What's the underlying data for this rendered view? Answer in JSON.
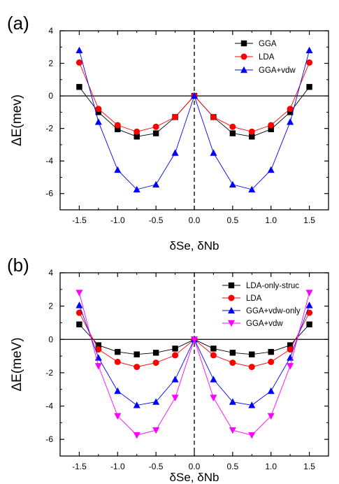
{
  "panels": [
    {
      "label": "(a)"
    },
    {
      "label": "(b)"
    }
  ],
  "chart_data": [
    {
      "type": "line",
      "panel": "(a)",
      "xlabel": "δSe,  δNb",
      "ylabel": "ΔE(mev)",
      "xlim": [
        -1.75,
        1.75
      ],
      "ylim": [
        -7,
        4
      ],
      "xticks": [
        -1.5,
        -1.0,
        -0.5,
        0.0,
        0.5,
        1.0,
        1.5
      ],
      "xtick_labels": [
        "-1.5",
        "-1.0",
        "-0.5",
        "0.0",
        "0.5",
        "1.0",
        "1.5"
      ],
      "yticks": [
        -6,
        -4,
        -2,
        0,
        2,
        4
      ],
      "ytick_labels": [
        "-6",
        "-4",
        "-2",
        "0",
        "2",
        "4"
      ],
      "hline_y": 0,
      "vline_x": 0,
      "legend_position": "top-right",
      "x": [
        -1.5,
        -1.25,
        -1.0,
        -0.75,
        -0.5,
        -0.25,
        0.0,
        0.25,
        0.5,
        0.75,
        1.0,
        1.25,
        1.5
      ],
      "series": [
        {
          "name": "GGA",
          "color": "#000000",
          "marker": "square",
          "values": [
            0.55,
            -1.0,
            -2.05,
            -2.5,
            -2.3,
            -1.3,
            0.0,
            -1.3,
            -2.3,
            -2.5,
            -2.05,
            -1.0,
            0.55
          ]
        },
        {
          "name": "LDA",
          "color": "#ff0000",
          "marker": "circle",
          "values": [
            2.05,
            -0.8,
            -1.8,
            -2.2,
            -1.9,
            -1.3,
            0.0,
            -1.3,
            -1.9,
            -2.2,
            -1.8,
            -0.8,
            2.05
          ]
        },
        {
          "name": "GGA+vdw",
          "color": "#0000ff",
          "marker": "triangle-up",
          "values": [
            2.8,
            -1.6,
            -4.55,
            -5.75,
            -5.45,
            -3.5,
            0.0,
            -3.5,
            -5.45,
            -5.75,
            -4.55,
            -1.6,
            2.8
          ]
        }
      ]
    },
    {
      "type": "line",
      "panel": "(b)",
      "xlabel": "δSe, δNb",
      "ylabel": "ΔE(meV)",
      "xlim": [
        -1.75,
        1.75
      ],
      "ylim": [
        -7,
        4
      ],
      "xticks": [
        -1.5,
        -1.0,
        -0.5,
        0.0,
        0.5,
        1.0,
        1.5
      ],
      "xtick_labels": [
        "-1.5",
        "-1.0",
        "-0.5",
        "0.0",
        "0.5",
        "1.0",
        "1.5"
      ],
      "yticks": [
        -6,
        -4,
        -2,
        0,
        2,
        4
      ],
      "ytick_labels": [
        "-6",
        "-4",
        "-2",
        "0",
        "2",
        "4"
      ],
      "hline_y": 0,
      "vline_x": 0,
      "legend_position": "top-right",
      "x": [
        -1.5,
        -1.25,
        -1.0,
        -0.75,
        -0.5,
        -0.25,
        0.0,
        0.25,
        0.5,
        0.75,
        1.0,
        1.25,
        1.5
      ],
      "series": [
        {
          "name": "LDA-only-struc",
          "color": "#000000",
          "marker": "square",
          "values": [
            0.9,
            -0.35,
            -0.75,
            -0.9,
            -0.8,
            -0.55,
            0.0,
            -0.55,
            -0.8,
            -0.9,
            -0.75,
            -0.35,
            0.9
          ]
        },
        {
          "name": "LDA",
          "color": "#ff0000",
          "marker": "circle",
          "values": [
            1.6,
            -0.6,
            -1.35,
            -1.65,
            -1.4,
            -0.95,
            0.0,
            -0.95,
            -1.4,
            -1.65,
            -1.35,
            -0.6,
            1.6
          ]
        },
        {
          "name": "GGA+vdw-only",
          "color": "#0000ff",
          "marker": "triangle-up",
          "values": [
            2.05,
            -1.1,
            -3.1,
            -3.95,
            -3.75,
            -2.4,
            0.0,
            -2.4,
            -3.75,
            -3.95,
            -3.1,
            -1.1,
            2.05
          ]
        },
        {
          "name": "GGA+vdw",
          "color": "#ff00ff",
          "marker": "triangle-down",
          "values": [
            2.8,
            -1.6,
            -4.6,
            -5.75,
            -5.45,
            -3.5,
            0.0,
            -3.5,
            -5.45,
            -5.75,
            -4.6,
            -1.6,
            2.8
          ]
        }
      ]
    }
  ]
}
